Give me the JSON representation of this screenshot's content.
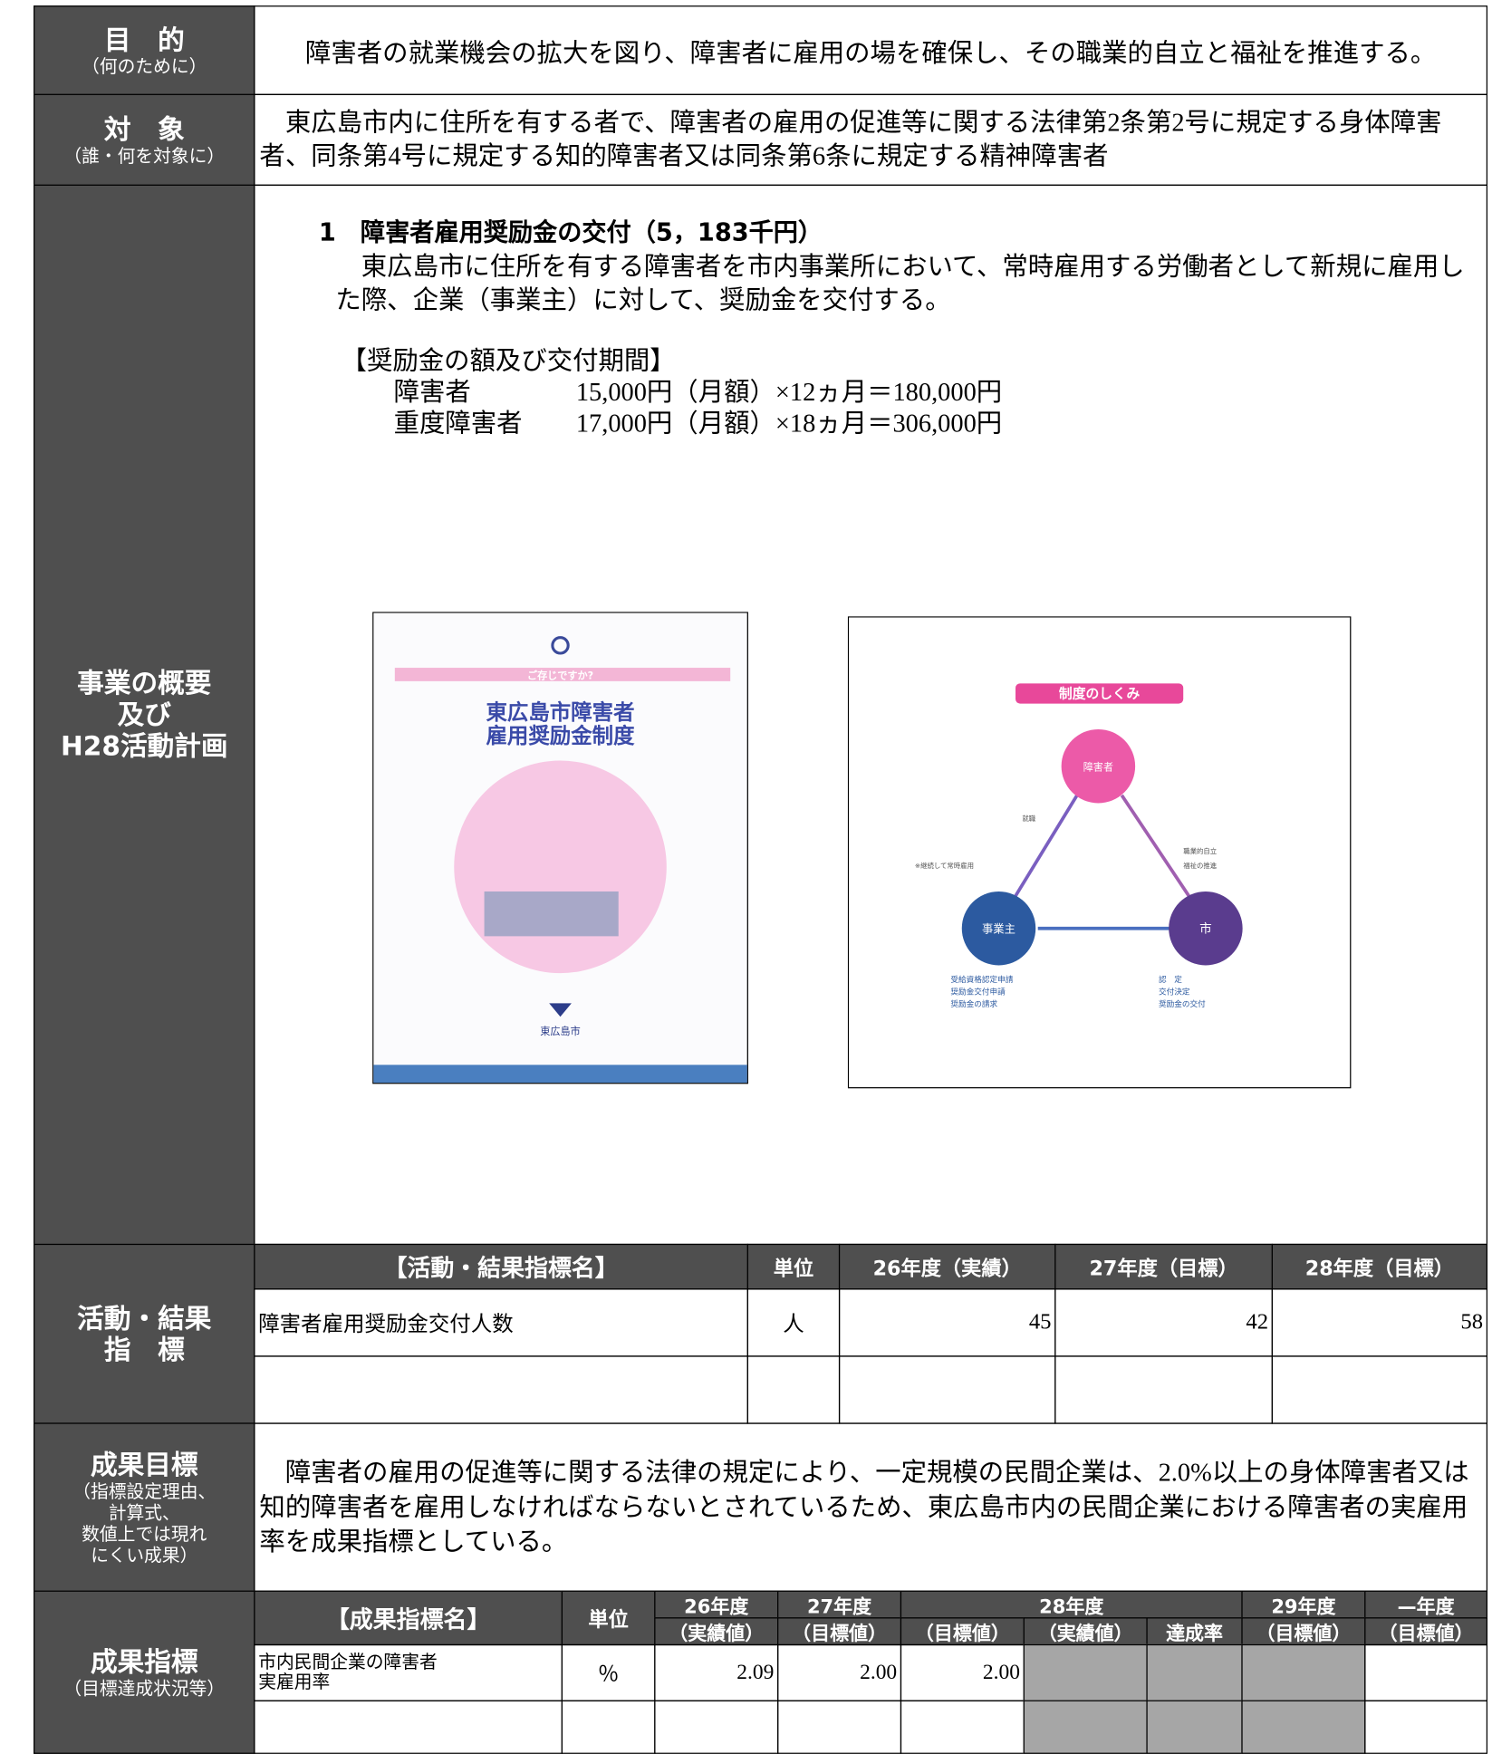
{
  "purpose": {
    "label": "目　的",
    "note": "（何のために）",
    "text": "障害者の就業機会の拡大を図り、障害者に雇用の場を確保し、その職業的自立と福祉を推進する。"
  },
  "target": {
    "label": "対　象",
    "note": "（誰・何を対象に）",
    "text": "東広島市内に住所を有する者で、障害者の雇用の促進等に関する法律第2条第2号に規定する身体障害者、同条第4号に規定する知的障害者又は同条第6条に規定する精神障害者"
  },
  "overview": {
    "label": [
      "事業の概要",
      "及び",
      "H28活動計画"
    ],
    "heading": "1　障害者雇用奨励金の交付（5，183千円）",
    "paragraph": "東広島市に住所を有する障害者を市内事業所において、常時雇用する労働者として新規に雇用した際、企業（事業主）に対して、奨励金を交付する。",
    "amounts_title": "【奨励金の額及び交付期間】",
    "amounts": [
      {
        "name": "障害者",
        "formula": "15,000円（月額）×12ヵ月＝180,000円"
      },
      {
        "name": "重度障害者",
        "formula": "17,000円（月額）×18ヵ月＝306,000円"
      }
    ],
    "pamphlet": {
      "tagline": "ご存じですか?",
      "title": [
        "東広島市障害者",
        "雇用奨励金制度"
      ],
      "publisher": "東広島市"
    },
    "diagram": {
      "title": "制度のしくみ",
      "nodes": [
        "障害者",
        "事業主",
        "市"
      ],
      "arrows": [
        "就職",
        "※継続して常時雇用",
        "職業的自立",
        "福祉の推進"
      ],
      "employer_steps": [
        "受給資格認定申請",
        "奨励金交付申請",
        "奨励金の請求"
      ],
      "city_steps": [
        "認　定",
        "交付決定",
        "奨励金の交付"
      ]
    }
  },
  "activity": {
    "label": [
      "活動・結果",
      "指　標"
    ],
    "header": [
      "【活動・結果指標名】",
      "単位",
      "26年度（実績）",
      "27年度（目標）",
      "28年度（目標）"
    ],
    "rows": [
      [
        "障害者雇用奨励金交付人数",
        "人",
        "45",
        "42",
        "58"
      ]
    ]
  },
  "goal": {
    "label": "成果目標",
    "note": [
      "（指標設定理由、",
      "計算式、",
      "数値上では現れ",
      "にくい成果）"
    ],
    "text": "障害者の雇用の促進等に関する法律の規定により、一定規模の民間企業は、2.0%以上の身体障害者又は知的障害者を雇用しなければならないとされているため、東広島市内の民間企業における障害者の実雇用率を成果指標としている。"
  },
  "outcome": {
    "label": "成果指標",
    "note": "（目標達成状況等）",
    "header": {
      "name": "【成果指標名】",
      "unit": "単位",
      "years": [
        {
          "year": "26年度",
          "kinds": [
            "（実績値）"
          ]
        },
        {
          "year": "27年度",
          "kinds": [
            "（目標値）"
          ]
        },
        {
          "year": "28年度",
          "kinds": [
            "（目標値）",
            "（実績値）",
            "達成率"
          ]
        },
        {
          "year": "29年度",
          "kinds": [
            "（目標値）"
          ]
        },
        {
          "year": "—年度",
          "kinds": [
            "（目標値）"
          ]
        }
      ]
    },
    "rows": [
      {
        "name": [
          "市内民間企業の障害者",
          "実雇用率"
        ],
        "unit": "％",
        "values": [
          "2.09",
          "2.00",
          "2.00"
        ]
      }
    ]
  }
}
